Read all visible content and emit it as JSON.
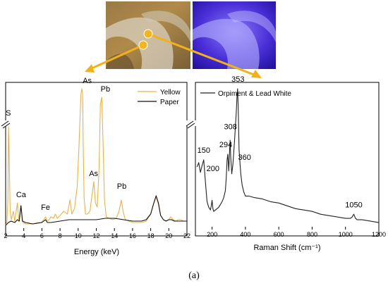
{
  "caption": "(a)",
  "photos": {
    "visible_label": "",
    "uv_label": ""
  },
  "colors": {
    "yellow": "#e8b34a",
    "paper": "#111111",
    "raman": "#222222",
    "arrow": "#f0b21a"
  },
  "chart_data": [
    {
      "type": "line",
      "title": "",
      "xlabel": "Energy (keV)",
      "ylabel": "",
      "xlim": [
        2,
        22
      ],
      "xticks": [
        "2",
        "4",
        "6",
        "8",
        "10",
        "12",
        "14",
        "16",
        "18",
        "20",
        "22"
      ],
      "legend": {
        "placement": "top-right",
        "entries": [
          "Yellow",
          "Paper"
        ]
      },
      "axis_break": "y",
      "series": [
        {
          "name": "Yellow",
          "color": "#e8b34a",
          "x": [
            2.0,
            2.15,
            2.25,
            2.31,
            2.38,
            2.5,
            2.62,
            2.7,
            2.85,
            3.0,
            3.31,
            3.45,
            3.69,
            3.9,
            4.2,
            4.6,
            5.0,
            5.5,
            5.9,
            6.2,
            6.4,
            6.6,
            6.8,
            7.0,
            7.3,
            7.48,
            7.7,
            8.0,
            8.4,
            8.8,
            9.1,
            9.3,
            9.6,
            9.9,
            10.1,
            10.3,
            10.4,
            10.5,
            10.55,
            10.65,
            10.8,
            11.0,
            11.3,
            11.5,
            11.73,
            11.9,
            12.1,
            12.3,
            12.45,
            12.61,
            12.75,
            12.9,
            13.1,
            13.4,
            13.8,
            14.2,
            14.5,
            14.76,
            14.95,
            15.2,
            15.6,
            16.0,
            16.5,
            17.0,
            17.5,
            18.0,
            18.3,
            18.6,
            18.85,
            19.1,
            19.4,
            19.7,
            20.0,
            20.2,
            20.5,
            20.8,
            21.0,
            21.3,
            21.6,
            22.0
          ],
          "y": [
            0.02,
            0.05,
            0.2,
            0.72,
            0.55,
            0.12,
            0.06,
            0.08,
            0.12,
            0.05,
            0.18,
            0.05,
            0.16,
            0.04,
            0.03,
            0.03,
            0.03,
            0.04,
            0.04,
            0.06,
            0.08,
            0.05,
            0.06,
            0.08,
            0.07,
            0.1,
            0.07,
            0.09,
            0.12,
            0.1,
            0.2,
            0.1,
            0.14,
            0.3,
            0.6,
            0.95,
            0.99,
            0.95,
            0.6,
            0.22,
            0.1,
            0.1,
            0.12,
            0.22,
            0.33,
            0.18,
            0.15,
            0.42,
            0.88,
            0.93,
            0.6,
            0.2,
            0.08,
            0.07,
            0.06,
            0.07,
            0.12,
            0.2,
            0.12,
            0.06,
            0.05,
            0.04,
            0.04,
            0.04,
            0.05,
            0.1,
            0.17,
            0.22,
            0.17,
            0.09,
            0.06,
            0.05,
            0.06,
            0.08,
            0.06,
            0.05,
            0.06,
            0.06,
            0.05,
            0.05
          ]
        },
        {
          "name": "Paper",
          "color": "#111111",
          "x": [
            2.0,
            2.3,
            2.6,
            3.0,
            3.3,
            3.5,
            3.69,
            3.85,
            4.2,
            5.0,
            6.0,
            6.4,
            6.6,
            7.0,
            8.0,
            9.0,
            10.0,
            11.0,
            12.0,
            13.0,
            14.0,
            15.0,
            16.0,
            16.5,
            17.0,
            17.5,
            18.0,
            18.3,
            18.6,
            18.85,
            19.1,
            19.4,
            19.7,
            20.0,
            20.3,
            20.6,
            21.0,
            21.4,
            22.0
          ],
          "y": [
            0.02,
            0.04,
            0.05,
            0.04,
            0.06,
            0.05,
            0.16,
            0.05,
            0.04,
            0.03,
            0.04,
            0.06,
            0.04,
            0.04,
            0.05,
            0.06,
            0.06,
            0.06,
            0.06,
            0.07,
            0.07,
            0.06,
            0.05,
            0.05,
            0.05,
            0.06,
            0.1,
            0.17,
            0.23,
            0.18,
            0.09,
            0.06,
            0.05,
            0.06,
            0.06,
            0.05,
            0.05,
            0.05,
            0.05
          ]
        }
      ],
      "annotations": [
        {
          "text": "S",
          "x": 2.3,
          "y": 0.8
        },
        {
          "text": "Ca",
          "x": 3.7,
          "y": 0.22
        },
        {
          "text": "Fe",
          "x": 6.4,
          "y": 0.13
        },
        {
          "text": "As",
          "x": 11.0,
          "y": 1.03
        },
        {
          "text": "Pb",
          "x": 13.0,
          "y": 0.97
        },
        {
          "text": "As",
          "x": 11.7,
          "y": 0.37
        },
        {
          "text": "Pb",
          "x": 14.8,
          "y": 0.28
        }
      ]
    },
    {
      "type": "line",
      "title": "",
      "xlabel": "Raman Shift (cm⁻¹)",
      "ylabel": "",
      "xlim": [
        100,
        1200
      ],
      "xticks": [
        "200",
        "400",
        "600",
        "800",
        "1000",
        "1200"
      ],
      "legend": {
        "placement": "top-left",
        "entries": [
          "Orpiment & Lead White"
        ]
      },
      "axis_break": "y",
      "series": [
        {
          "name": "Orpiment & Lead White",
          "color": "#222222",
          "x": [
            110,
            120,
            130,
            140,
            150,
            160,
            170,
            180,
            190,
            195,
            200,
            205,
            210,
            220,
            230,
            240,
            250,
            260,
            270,
            280,
            285,
            290,
            294,
            300,
            305,
            308,
            312,
            318,
            325,
            335,
            345,
            350,
            353,
            357,
            362,
            365,
            372,
            380,
            390,
            400,
            420,
            450,
            500,
            550,
            600,
            650,
            700,
            750,
            800,
            850,
            900,
            950,
            1000,
            1030,
            1040,
            1050,
            1060,
            1070,
            1100,
            1150,
            1200
          ],
          "y": [
            0.43,
            0.46,
            0.39,
            0.44,
            0.48,
            0.32,
            0.18,
            0.14,
            0.12,
            0.15,
            0.19,
            0.13,
            0.11,
            0.12,
            0.13,
            0.14,
            0.16,
            0.18,
            0.21,
            0.26,
            0.35,
            0.48,
            0.52,
            0.4,
            0.55,
            0.62,
            0.5,
            0.38,
            0.45,
            0.62,
            0.82,
            0.95,
            0.99,
            0.85,
            0.55,
            0.5,
            0.38,
            0.3,
            0.25,
            0.22,
            0.22,
            0.21,
            0.2,
            0.18,
            0.17,
            0.15,
            0.13,
            0.12,
            0.11,
            0.09,
            0.08,
            0.07,
            0.06,
            0.06,
            0.07,
            0.09,
            0.06,
            0.05,
            0.05,
            0.04,
            0.03
          ]
        }
      ],
      "annotations": [
        {
          "text": "150",
          "x": 150,
          "y": 0.53
        },
        {
          "text": "200",
          "x": 205,
          "y": 0.4
        },
        {
          "text": "294",
          "x": 282,
          "y": 0.57
        },
        {
          "text": "308",
          "x": 310,
          "y": 0.7
        },
        {
          "text": "353",
          "x": 355,
          "y": 1.04
        },
        {
          "text": "360",
          "x": 395,
          "y": 0.48
        },
        {
          "text": "1050",
          "x": 1050,
          "y": 0.14
        }
      ]
    }
  ]
}
